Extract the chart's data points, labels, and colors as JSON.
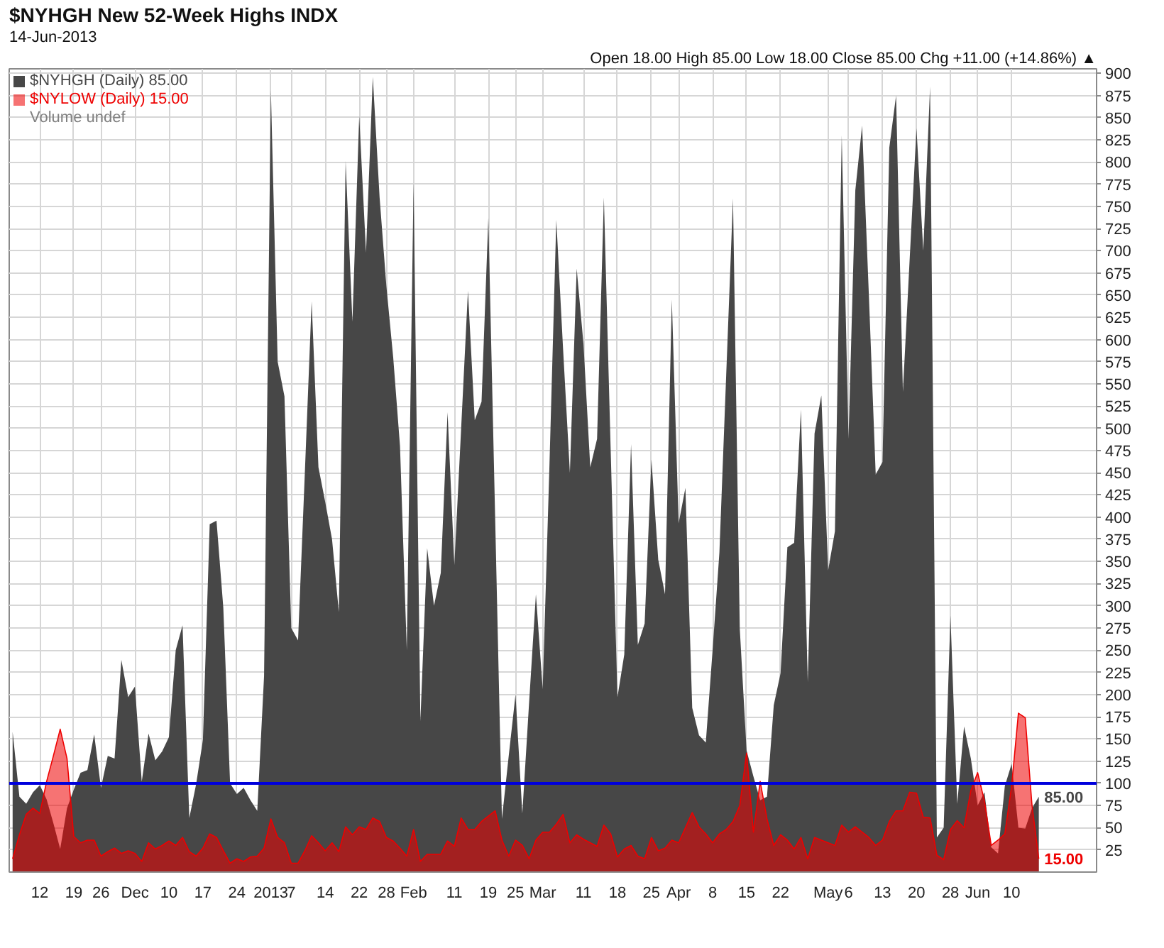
{
  "chart_data": {
    "type": "area",
    "title": "$NYHGH New 52-Week Highs INDX",
    "subtitle": "14-Jun-2013",
    "annotations": [
      "Open 18.00 High 85.00 Low 18.00 Close 85.00 Chg +11.00 (+14.86%) ▲"
    ],
    "categories": [
      null,
      null,
      null,
      null,
      "12",
      null,
      null,
      null,
      null,
      "19",
      null,
      null,
      null,
      "26",
      null,
      null,
      null,
      null,
      "Dec",
      null,
      null,
      null,
      null,
      "10",
      null,
      null,
      null,
      null,
      "17",
      null,
      null,
      null,
      null,
      "24",
      null,
      null,
      null,
      null,
      "2013",
      null,
      null,
      "7",
      null,
      null,
      null,
      null,
      "14",
      null,
      null,
      null,
      null,
      "22",
      null,
      null,
      null,
      "28",
      null,
      null,
      null,
      "Feb",
      null,
      null,
      null,
      null,
      null,
      "11",
      null,
      null,
      null,
      null,
      "19",
      null,
      null,
      null,
      "25",
      null,
      null,
      null,
      "Mar",
      null,
      null,
      null,
      null,
      null,
      "11",
      null,
      null,
      null,
      null,
      "18",
      null,
      null,
      null,
      null,
      "25",
      null,
      null,
      null,
      "Apr",
      null,
      null,
      null,
      null,
      "8",
      null,
      null,
      null,
      null,
      "15",
      null,
      null,
      null,
      null,
      "22",
      null,
      null,
      null,
      null,
      null,
      null,
      "May",
      null,
      null,
      "6",
      null,
      null,
      null,
      null,
      "13",
      null,
      null,
      null,
      null,
      "20",
      null,
      null,
      null,
      null,
      "28",
      null,
      null,
      null,
      "Jun",
      null,
      null,
      null,
      null,
      "10",
      null,
      null,
      null,
      null
    ],
    "series": [
      {
        "name": "$NYHGH (Daily) 85.00",
        "color": "#474747",
        "values": [
          158,
          85,
          77,
          90,
          98,
          82,
          55,
          26,
          72,
          93,
          112,
          115,
          155,
          95,
          131,
          128,
          239,
          197,
          209,
          102,
          156,
          126,
          136,
          152,
          250,
          278,
          61,
          99,
          149,
          392,
          396,
          298,
          100,
          88,
          95,
          81,
          69,
          221,
          881,
          575,
          536,
          275,
          261,
          450,
          643,
          456,
          417,
          375,
          293,
          801,
          620,
          852,
          698,
          896,
          760,
          660,
          580,
          480,
          250,
          777,
          170,
          365,
          300,
          337,
          518,
          346,
          500,
          655,
          509,
          530,
          737,
          400,
          60,
          131,
          200,
          66,
          191,
          313,
          206,
          460,
          735,
          589,
          450,
          680,
          595,
          456,
          488,
          760,
          476,
          197,
          245,
          482,
          256,
          280,
          465,
          352,
          313,
          645,
          393,
          433,
          185,
          154,
          146,
          250,
          360,
          560,
          759,
          274,
          137,
          108,
          81,
          85,
          188,
          224,
          366,
          371,
          521,
          214,
          494,
          537,
          340,
          384,
          830,
          488,
          768,
          841,
          649,
          448,
          462,
          816,
          875,
          541,
          691,
          838,
          700,
          885,
          39,
          50,
          289,
          77,
          164,
          128,
          75,
          90,
          28,
          21,
          97,
          122,
          50,
          49,
          72,
          85
        ],
        "value_labels": [
          null,
          null,
          null,
          null,
          null,
          null,
          null,
          null,
          null,
          null,
          null,
          null,
          null,
          null,
          null,
          null,
          null,
          null,
          null,
          null,
          null,
          null,
          null,
          null,
          null,
          null,
          null,
          null,
          null,
          null,
          null,
          null,
          null,
          null,
          null,
          null,
          null,
          null,
          null,
          null,
          null,
          null,
          null,
          null,
          null,
          null,
          null,
          null,
          null,
          null,
          null,
          null,
          null,
          null,
          null,
          null,
          null,
          null,
          null,
          null,
          null,
          null,
          null,
          null,
          null,
          null,
          null,
          null,
          null,
          null,
          null,
          null,
          null,
          null,
          null,
          null,
          null,
          null,
          null,
          null,
          null,
          null,
          null,
          null,
          null,
          null,
          null,
          null,
          null,
          null,
          null,
          null,
          null,
          null,
          null,
          null,
          null,
          null,
          null,
          null,
          null,
          null,
          null,
          null,
          null,
          null,
          null,
          null,
          null,
          null,
          null,
          null,
          null,
          null,
          null,
          null,
          null,
          null,
          null,
          null,
          null,
          null,
          null,
          null,
          null,
          null,
          null,
          null,
          null,
          null,
          null,
          null,
          null,
          null,
          null,
          null,
          null,
          null,
          null,
          null,
          null,
          null,
          null,
          null,
          null,
          null,
          null,
          null,
          null,
          null,
          null,
          "85.00"
        ]
      },
      {
        "name": "$NYLOW (Daily) 15.00",
        "color": "#ee0000",
        "values": [
          15,
          42,
          65,
          72,
          66,
          102,
          131,
          161,
          128,
          40,
          33,
          36,
          36,
          18,
          23,
          27,
          21,
          24,
          21,
          12,
          33,
          26,
          30,
          35,
          30,
          39,
          23,
          18,
          27,
          43,
          39,
          24,
          10,
          15,
          12,
          17,
          18,
          27,
          60,
          39,
          33,
          10,
          10,
          24,
          41,
          33,
          24,
          33,
          23,
          51,
          42,
          51,
          48,
          61,
          57,
          39,
          35,
          27,
          18,
          48,
          12,
          20,
          20,
          20,
          35,
          29,
          61,
          48,
          48,
          57,
          63,
          69,
          36,
          18,
          36,
          30,
          15,
          36,
          45,
          45,
          54,
          65,
          33,
          42,
          37,
          33,
          29,
          53,
          43,
          17,
          26,
          30,
          18,
          15,
          39,
          24,
          27,
          36,
          33,
          50,
          67,
          51,
          43,
          33,
          43,
          48,
          57,
          75,
          134,
          45,
          102,
          60,
          30,
          42,
          36,
          26,
          39,
          15,
          39,
          36,
          33,
          30,
          53,
          45,
          51,
          45,
          39,
          30,
          36,
          57,
          69,
          69,
          90,
          89,
          62,
          61,
          19,
          14,
          48,
          58,
          50,
          92,
          112,
          80,
          30,
          36,
          43,
          97,
          179,
          174,
          75,
          15
        ],
        "value_labels": [
          null,
          null,
          null,
          null,
          null,
          null,
          null,
          null,
          null,
          null,
          null,
          null,
          null,
          null,
          null,
          null,
          null,
          null,
          null,
          null,
          null,
          null,
          null,
          null,
          null,
          null,
          null,
          null,
          null,
          null,
          null,
          null,
          null,
          null,
          null,
          null,
          null,
          null,
          null,
          null,
          null,
          null,
          null,
          null,
          null,
          null,
          null,
          null,
          null,
          null,
          null,
          null,
          null,
          null,
          null,
          null,
          null,
          null,
          null,
          null,
          null,
          null,
          null,
          null,
          null,
          null,
          null,
          null,
          null,
          null,
          null,
          null,
          null,
          null,
          null,
          null,
          null,
          null,
          null,
          null,
          null,
          null,
          null,
          null,
          null,
          null,
          null,
          null,
          null,
          null,
          null,
          null,
          null,
          null,
          null,
          null,
          null,
          null,
          null,
          null,
          null,
          null,
          null,
          null,
          null,
          null,
          null,
          null,
          null,
          null,
          null,
          null,
          null,
          null,
          null,
          null,
          null,
          null,
          null,
          null,
          null,
          null,
          null,
          null,
          null,
          null,
          null,
          null,
          null,
          null,
          null,
          null,
          null,
          null,
          null,
          null,
          null,
          null,
          null,
          null,
          null,
          null,
          null,
          null,
          null,
          null,
          null,
          null,
          null,
          null,
          null,
          "15.00"
        ]
      },
      {
        "name": "Volume undef",
        "type": "bar",
        "color": "#808080",
        "values": [
          null,
          null,
          null,
          null,
          null,
          null,
          null,
          null,
          null,
          null,
          null,
          null,
          null,
          null,
          null,
          null,
          null,
          null,
          null,
          null,
          null,
          null,
          null,
          null,
          null,
          null,
          null,
          null,
          null,
          null,
          null,
          null,
          null,
          null,
          null,
          null,
          null,
          null,
          null,
          null,
          null,
          null,
          null,
          null,
          null,
          null,
          null,
          null,
          null,
          null,
          null,
          null,
          null,
          null,
          null,
          null,
          null,
          null,
          null,
          null,
          null,
          null,
          null,
          null,
          null,
          null,
          null,
          null,
          null,
          null,
          null,
          null,
          null,
          null,
          null,
          null,
          null,
          null,
          null,
          null,
          null,
          null,
          null,
          null,
          null,
          null,
          null,
          null,
          null,
          null,
          null,
          null,
          null,
          null,
          null,
          null,
          null,
          null,
          null,
          null,
          null,
          null,
          null,
          null,
          null,
          null,
          null,
          null,
          null,
          null,
          null,
          null,
          null,
          null,
          null,
          null,
          null,
          null,
          null,
          null,
          null,
          null,
          null,
          null,
          null,
          null,
          null,
          null,
          null,
          null,
          null,
          null,
          null,
          null,
          null,
          null,
          null,
          null,
          null,
          null,
          null,
          null,
          null,
          null,
          null,
          null,
          null,
          null,
          null,
          null,
          null,
          null
        ]
      }
    ],
    "ylim": [
      0,
      905
    ],
    "yticks": [
      25,
      50,
      75,
      100,
      125,
      150,
      175,
      200,
      225,
      250,
      275,
      300,
      325,
      350,
      375,
      400,
      425,
      450,
      475,
      500,
      525,
      550,
      575,
      600,
      625,
      650,
      675,
      700,
      725,
      750,
      775,
      800,
      825,
      850,
      875,
      900
    ],
    "grid": true,
    "legend": "top left",
    "ref_lines": [
      {
        "axis": "y",
        "value": 100,
        "color": "#0000dd"
      }
    ]
  }
}
